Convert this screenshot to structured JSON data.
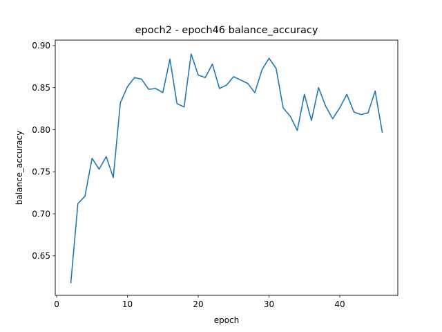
{
  "chart_data": {
    "type": "line",
    "title": "epoch2 - epoch46 balance_accuracy",
    "xlabel": "epoch",
    "ylabel": "balance_accuracy",
    "xlim": [
      -0.2,
      48.2
    ],
    "ylim": [
      0.603,
      0.9065
    ],
    "xticks": [
      0,
      10,
      20,
      30,
      40
    ],
    "xtick_labels": [
      "0",
      "10",
      "20",
      "30",
      "40"
    ],
    "yticks": [
      0.65,
      0.7,
      0.75,
      0.8,
      0.85,
      0.9
    ],
    "ytick_labels": [
      "0.65",
      "0.70",
      "0.75",
      "0.80",
      "0.85",
      "0.90"
    ],
    "grid": false,
    "legend": "none",
    "line_color": "#1f77b4",
    "series": [
      {
        "x": [
          2,
          3,
          4,
          5,
          6,
          7,
          8,
          9,
          10,
          11,
          12,
          13,
          14,
          15,
          16,
          17,
          18,
          19,
          20,
          21,
          22,
          23,
          24,
          25,
          26,
          27,
          28,
          29,
          30,
          31,
          32,
          33,
          34,
          35,
          36,
          37,
          38,
          39,
          40,
          41,
          42,
          43,
          44,
          45,
          46
        ],
        "values": [
          0.618,
          0.712,
          0.721,
          0.766,
          0.753,
          0.768,
          0.743,
          0.832,
          0.851,
          0.862,
          0.86,
          0.848,
          0.849,
          0.844,
          0.884,
          0.831,
          0.827,
          0.89,
          0.865,
          0.862,
          0.878,
          0.849,
          0.853,
          0.863,
          0.859,
          0.855,
          0.844,
          0.871,
          0.885,
          0.873,
          0.826,
          0.816,
          0.799,
          0.842,
          0.811,
          0.85,
          0.828,
          0.813,
          0.826,
          0.842,
          0.821,
          0.818,
          0.82,
          0.846,
          0.797
        ]
      }
    ]
  }
}
